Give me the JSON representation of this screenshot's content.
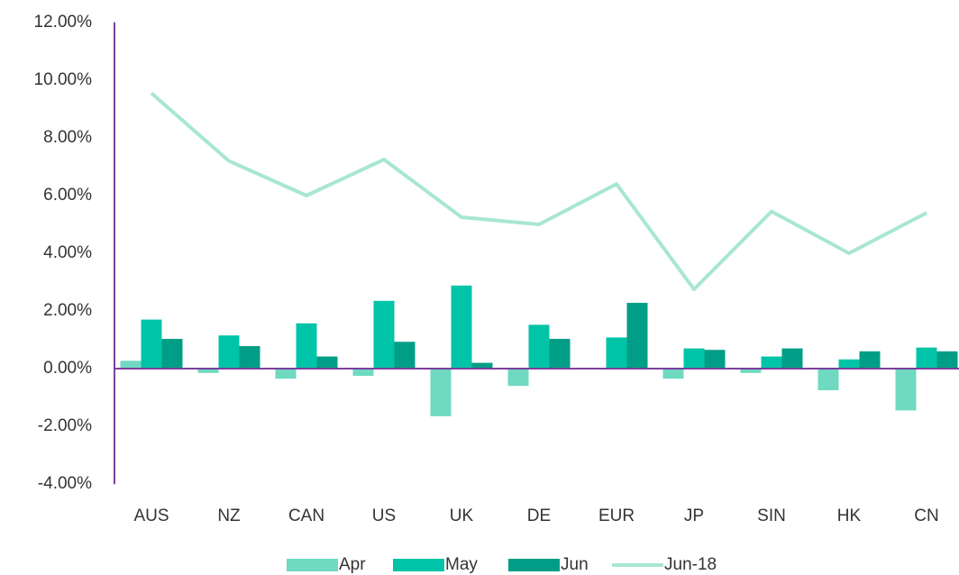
{
  "chart_data": {
    "type": "bar-line",
    "categories": [
      "AUS",
      "NZ",
      "CAN",
      "US",
      "UK",
      "DE",
      "EUR",
      "JP",
      "SIN",
      "HK",
      "CN"
    ],
    "series": [
      {
        "name": "Apr",
        "type": "bar",
        "color": "#6fd9c2",
        "values": [
          0.27,
          -0.15,
          -0.35,
          -0.25,
          -1.65,
          -0.6,
          0.02,
          -0.35,
          -0.15,
          -0.75,
          -1.45
        ]
      },
      {
        "name": "May",
        "type": "bar",
        "color": "#00c4a7",
        "values": [
          1.7,
          1.15,
          1.57,
          2.35,
          2.88,
          1.52,
          1.08,
          0.7,
          0.42,
          0.32,
          0.73
        ]
      },
      {
        "name": "Jun",
        "type": "bar",
        "color": "#009e86",
        "values": [
          1.03,
          0.78,
          0.42,
          0.93,
          0.2,
          1.03,
          2.28,
          0.65,
          0.7,
          0.6,
          0.6
        ]
      },
      {
        "name": "Jun-18",
        "type": "line",
        "color": "#a8e6d4",
        "values": [
          9.55,
          7.2,
          6.0,
          7.25,
          5.25,
          5.0,
          6.4,
          2.75,
          5.45,
          4.0,
          5.4
        ]
      }
    ],
    "ylim": [
      -4,
      12
    ],
    "yticks": [
      {
        "value": -4,
        "label": "-4.00%"
      },
      {
        "value": -2,
        "label": "-2.00%"
      },
      {
        "value": 0,
        "label": "0.00%"
      },
      {
        "value": 2,
        "label": "2.00%"
      },
      {
        "value": 4,
        "label": "4.00%"
      },
      {
        "value": 6,
        "label": "6.00%"
      },
      {
        "value": 8,
        "label": "8.00%"
      },
      {
        "value": 10,
        "label": "10.00%"
      },
      {
        "value": 12,
        "label": "12.00%"
      }
    ],
    "grid": false,
    "legend": "bottom"
  }
}
